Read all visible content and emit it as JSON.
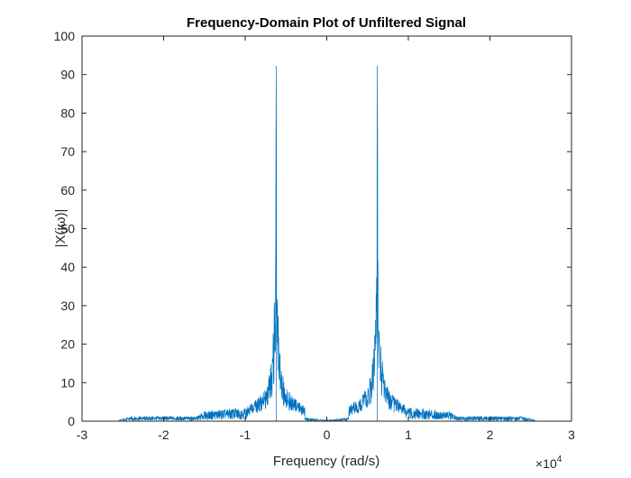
{
  "chart_data": {
    "type": "line",
    "title": "Frequency-Domain Plot of Unfiltered Signal",
    "xlabel": "Frequency (rad/s)",
    "ylabel": "|X(jω)|",
    "x_multiplier": "×10",
    "x_multiplier_exponent": "4",
    "xlim": [
      -3,
      3
    ],
    "ylim": [
      0,
      100
    ],
    "x_ticks": [
      -3,
      -2,
      -1,
      0,
      1,
      2,
      3
    ],
    "x_tick_labels": [
      "-3",
      "-2",
      "-1",
      "0",
      "1",
      "2",
      "3"
    ],
    "y_ticks": [
      0,
      10,
      20,
      30,
      40,
      50,
      60,
      70,
      80,
      90,
      100
    ],
    "y_tick_labels": [
      "0",
      "10",
      "20",
      "30",
      "40",
      "50",
      "60",
      "70",
      "80",
      "90",
      "100"
    ],
    "grid": false,
    "box": true,
    "series": [
      {
        "color": "#0072BD",
        "x_scale": 10000,
        "spectrum_extent": [
          -2.55,
          2.55
        ],
        "peaks": [
          {
            "x": -0.62,
            "value": 92
          },
          {
            "x": 0.62,
            "value": 92
          }
        ],
        "peak_envelope": [
          {
            "dx": 0.0,
            "value": 92
          },
          {
            "dx": 0.005,
            "value": 55
          },
          {
            "dx": 0.012,
            "value": 42
          },
          {
            "dx": 0.02,
            "value": 35
          },
          {
            "dx": 0.035,
            "value": 24
          },
          {
            "dx": 0.05,
            "value": 18
          },
          {
            "dx": 0.07,
            "value": 14
          },
          {
            "dx": 0.1,
            "value": 10
          },
          {
            "dx": 0.15,
            "value": 8
          },
          {
            "dx": 0.22,
            "value": 6
          },
          {
            "dx": 0.35,
            "value": 4
          }
        ],
        "noise_floor": [
          {
            "x": 0.0,
            "value": 0.3
          },
          {
            "x": 0.5,
            "value": 1.5
          },
          {
            "x": 0.8,
            "value": 3.0
          },
          {
            "x": 1.0,
            "value": 3.5
          },
          {
            "x": 1.3,
            "value": 3.0
          },
          {
            "x": 1.5,
            "value": 2.5
          },
          {
            "x": 1.6,
            "value": 1.2
          },
          {
            "x": 2.0,
            "value": 1.3
          },
          {
            "x": 2.4,
            "value": 1.2
          },
          {
            "x": 2.55,
            "value": 0.3
          }
        ]
      }
    ]
  }
}
